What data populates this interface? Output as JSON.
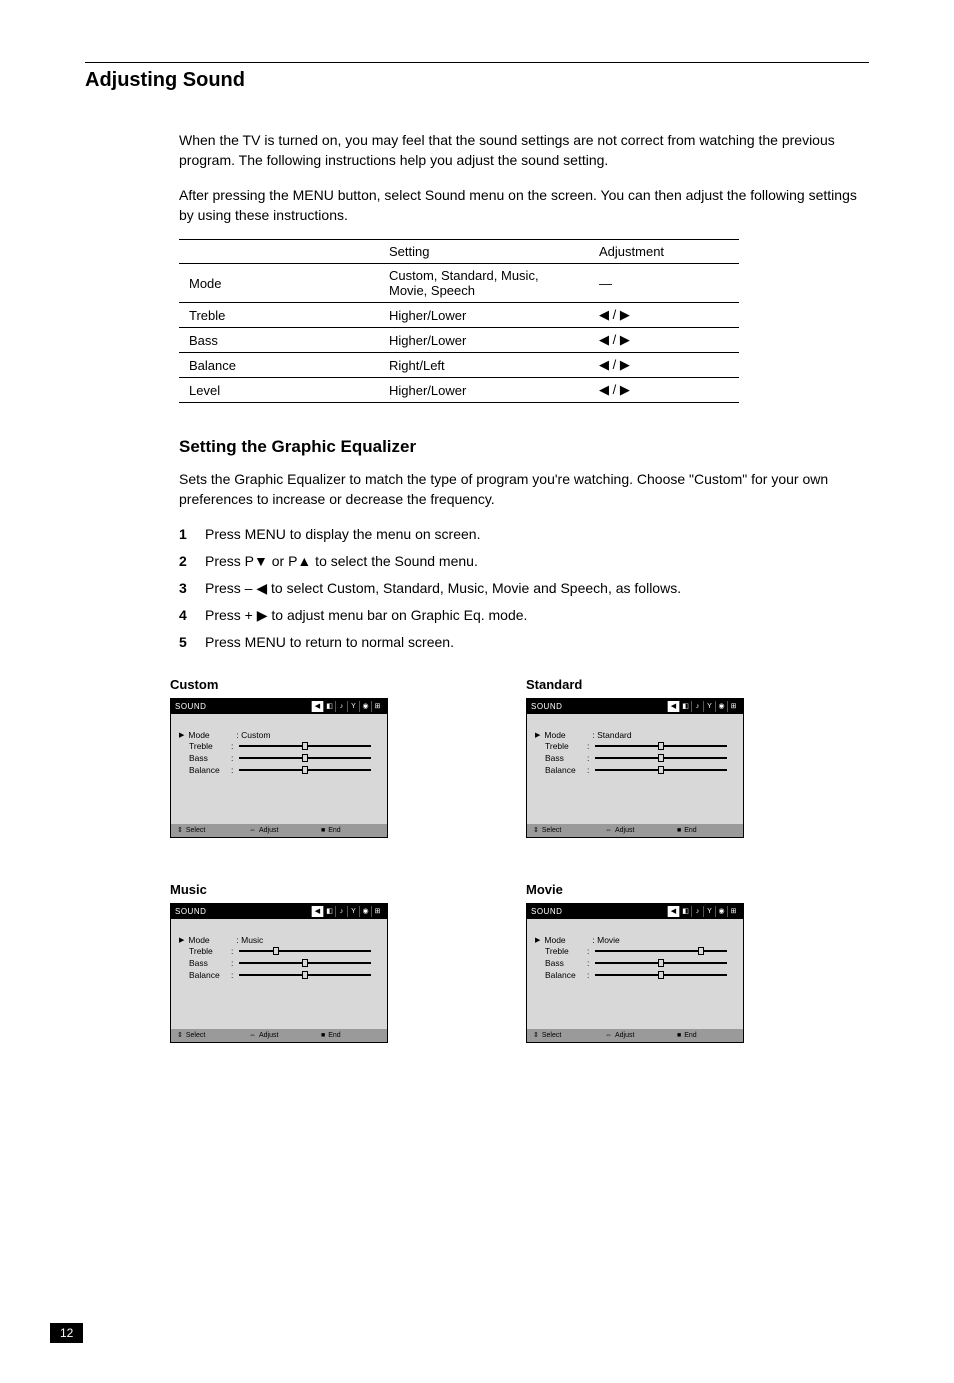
{
  "section_title": "Adjusting Sound",
  "intro_p1": "When the TV is turned on, you may feel that the sound settings are not correct from watching the previous program. The following instructions help you adjust the sound setting.",
  "intro_p2": "After pressing the MENU button, select Sound menu on the screen. You can then adjust the following settings by using these instructions.",
  "table": {
    "col0_head": "",
    "col1_head": "Setting",
    "col2_head": "Adjustment",
    "rows": [
      [
        "Mode",
        "Custom, Standard, Music, Movie, Speech",
        "—"
      ],
      [
        "Treble",
        "Higher/Lower",
        "◀ / ▶"
      ],
      [
        "Bass",
        "Higher/Lower",
        "◀ / ▶"
      ],
      [
        "Balance",
        "Right/Left",
        "◀ / ▶"
      ],
      [
        "Level",
        "Higher/Lower",
        "◀ / ▶"
      ]
    ]
  },
  "sub1_title": "Setting the Graphic Equalizer",
  "sub1_p1": "Sets the Graphic Equalizer to match the type of program you're watching. Choose \"Custom\" for your own preferences to increase or decrease the frequency.",
  "steps": [
    "Press MENU to display the menu on screen.",
    "Press P▼ or P▲ to select the Sound menu.",
    "Press – ◀ to select Custom, Standard, Music, Movie and Speech, as follows.",
    "Press + ▶ to adjust menu bar on Graphic Eq. mode.",
    "Press MENU to return to normal screen."
  ],
  "panels": {
    "common": {
      "topbar_title": "SOUND",
      "row_mode": "Mode",
      "row_treble": "Treble",
      "row_bass": "Bass",
      "row_balance": "Balance",
      "bottom_select": "Select",
      "bottom_adjust": "Adjust",
      "bottom_end": "End"
    },
    "items": [
      {
        "label": "Custom",
        "mode_value": "Custom",
        "treble": 50,
        "bass": 50,
        "balance": 50
      },
      {
        "label": "Standard",
        "mode_value": "Standard",
        "treble": 50,
        "bass": 50,
        "balance": 50
      },
      {
        "label": "Music",
        "mode_value": "Music",
        "treble": 28,
        "bass": 50,
        "balance": 50
      },
      {
        "label": "Movie",
        "mode_value": "Movie",
        "treble": 80,
        "bass": 50,
        "balance": 50
      }
    ]
  },
  "page_number": "12",
  "colors": {
    "panel_bg": "#d8d8d8",
    "bottombar_bg": "#9a9a9a",
    "black": "#000000",
    "white": "#ffffff"
  }
}
